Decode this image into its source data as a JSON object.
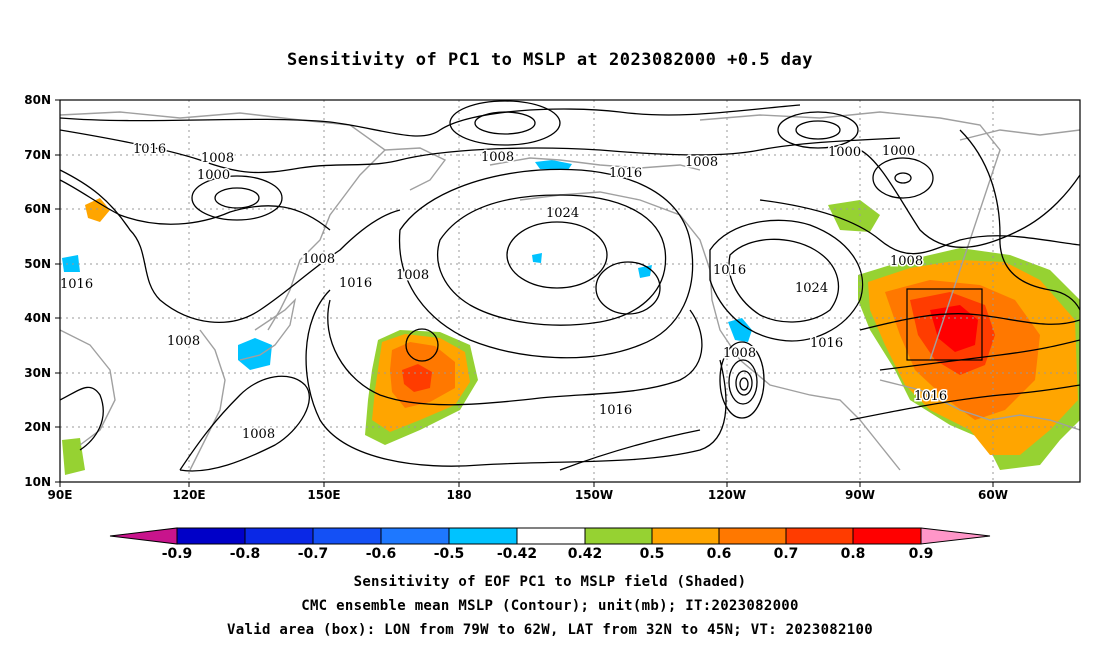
{
  "title": "Sensitivity of PC1 to MSLP at 2023082000 +0.5 day",
  "map": {
    "lat_labels": [
      "80N",
      "70N",
      "60N",
      "50N",
      "40N",
      "30N",
      "20N",
      "10N"
    ],
    "lon_labels": [
      "90E",
      "120E",
      "150E",
      "180",
      "150W",
      "120W",
      "90W",
      "60W"
    ],
    "grid": true,
    "box": {
      "lon_from": "79W",
      "lon_to": "62W",
      "lat_from": "32N",
      "lat_to": "45N"
    },
    "contour_labels": [
      "1016",
      "1008",
      "1000",
      "1008",
      "1016",
      "1024",
      "1008",
      "1016",
      "1008",
      "1016",
      "1016",
      "1024",
      "1016",
      "1008",
      "1000",
      "1000",
      "1008",
      "1008",
      "1016",
      "1008",
      "1008",
      "1016"
    ]
  },
  "colorbar": {
    "ticks": [
      "-0.9",
      "-0.8",
      "-0.7",
      "-0.6",
      "-0.5",
      "-0.42",
      "0.42",
      "0.5",
      "0.6",
      "0.7",
      "0.8",
      "0.9"
    ],
    "colors": [
      "#0000c8",
      "#0a28e6",
      "#1450f5",
      "#1e78ff",
      "#00c3ff",
      "#ffffff",
      "#96d232",
      "#ffa500",
      "#ff7800",
      "#ff3c00",
      "#ff0000"
    ],
    "low_color": "#c8148c",
    "high_color": "#ff96c8"
  },
  "captions": {
    "line1": "Sensitivity of EOF PC1 to MSLP field (Shaded)",
    "line2": "CMC ensemble mean MSLP (Contour); unit(mb); IT:2023082000",
    "line3": "Valid area (box): LON from 79W to 62W, LAT from 32N to 45N; VT: 2023082100"
  }
}
